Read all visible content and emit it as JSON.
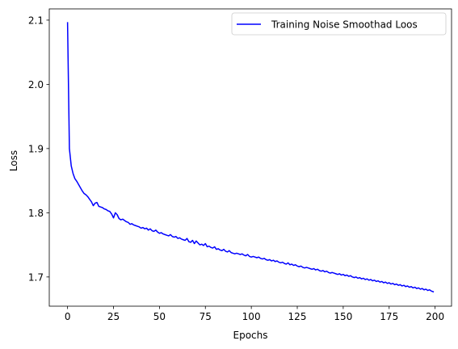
{
  "chart_data": {
    "type": "line",
    "title": "",
    "xlabel": "Epochs",
    "ylabel": "Loss",
    "xlim": [
      -9.95,
      208.95
    ],
    "ylim": [
      1.6545,
      2.1175
    ],
    "xticks": [
      0,
      25,
      50,
      75,
      100,
      125,
      150,
      175,
      200
    ],
    "xtick_labels": [
      "0",
      "25",
      "50",
      "75",
      "100",
      "125",
      "150",
      "175",
      "200"
    ],
    "yticks": [
      1.7,
      1.8,
      1.9,
      2.0,
      2.1
    ],
    "ytick_labels": [
      "1.7",
      "1.8",
      "1.9",
      "2.0",
      "2.1"
    ],
    "grid": false,
    "legend_position": "top-right",
    "series": [
      {
        "name": "Training Noise Smoothad Loos",
        "color": "#0000ff",
        "x": [
          0,
          1,
          2,
          3,
          4,
          5,
          6,
          7,
          8,
          9,
          10,
          11,
          12,
          13,
          14,
          15,
          16,
          17,
          18,
          19,
          20,
          21,
          22,
          23,
          24,
          25,
          26,
          27,
          28,
          29,
          30,
          31,
          32,
          33,
          34,
          35,
          36,
          37,
          38,
          39,
          40,
          41,
          42,
          43,
          44,
          45,
          46,
          47,
          48,
          49,
          50,
          51,
          52,
          53,
          54,
          55,
          56,
          57,
          58,
          59,
          60,
          61,
          62,
          63,
          64,
          65,
          66,
          67,
          68,
          69,
          70,
          71,
          72,
          73,
          74,
          75,
          76,
          77,
          78,
          79,
          80,
          81,
          82,
          83,
          84,
          85,
          86,
          87,
          88,
          89,
          90,
          91,
          92,
          93,
          94,
          95,
          96,
          97,
          98,
          99,
          100,
          101,
          102,
          103,
          104,
          105,
          106,
          107,
          108,
          109,
          110,
          111,
          112,
          113,
          114,
          115,
          116,
          117,
          118,
          119,
          120,
          121,
          122,
          123,
          124,
          125,
          126,
          127,
          128,
          129,
          130,
          131,
          132,
          133,
          134,
          135,
          136,
          137,
          138,
          139,
          140,
          141,
          142,
          143,
          144,
          145,
          146,
          147,
          148,
          149,
          150,
          151,
          152,
          153,
          154,
          155,
          156,
          157,
          158,
          159,
          160,
          161,
          162,
          163,
          164,
          165,
          166,
          167,
          168,
          169,
          170,
          171,
          172,
          173,
          174,
          175,
          176,
          177,
          178,
          179,
          180,
          181,
          182,
          183,
          184,
          185,
          186,
          187,
          188,
          189,
          190,
          191,
          192,
          193,
          194,
          195,
          196,
          197,
          198,
          199
        ],
        "y": [
          2.096,
          1.9,
          1.873,
          1.861,
          1.853,
          1.849,
          1.844,
          1.839,
          1.834,
          1.83,
          1.828,
          1.825,
          1.821,
          1.817,
          1.811,
          1.815,
          1.816,
          1.81,
          1.809,
          1.808,
          1.806,
          1.805,
          1.803,
          1.802,
          1.798,
          1.792,
          1.8,
          1.797,
          1.791,
          1.789,
          1.79,
          1.788,
          1.786,
          1.785,
          1.782,
          1.783,
          1.781,
          1.78,
          1.779,
          1.778,
          1.776,
          1.777,
          1.775,
          1.776,
          1.773,
          1.775,
          1.772,
          1.771,
          1.773,
          1.77,
          1.768,
          1.769,
          1.767,
          1.766,
          1.765,
          1.764,
          1.766,
          1.763,
          1.762,
          1.763,
          1.76,
          1.761,
          1.759,
          1.758,
          1.757,
          1.76,
          1.755,
          1.754,
          1.757,
          1.752,
          1.756,
          1.753,
          1.75,
          1.751,
          1.749,
          1.752,
          1.747,
          1.748,
          1.746,
          1.745,
          1.747,
          1.743,
          1.744,
          1.742,
          1.741,
          1.743,
          1.74,
          1.739,
          1.741,
          1.738,
          1.737,
          1.736,
          1.737,
          1.736,
          1.735,
          1.736,
          1.734,
          1.733,
          1.735,
          1.732,
          1.731,
          1.732,
          1.731,
          1.73,
          1.731,
          1.729,
          1.728,
          1.729,
          1.727,
          1.726,
          1.727,
          1.725,
          1.726,
          1.724,
          1.725,
          1.723,
          1.722,
          1.723,
          1.721,
          1.72,
          1.722,
          1.719,
          1.72,
          1.718,
          1.719,
          1.717,
          1.716,
          1.717,
          1.715,
          1.714,
          1.715,
          1.714,
          1.713,
          1.712,
          1.713,
          1.711,
          1.712,
          1.71,
          1.709,
          1.71,
          1.708,
          1.709,
          1.707,
          1.706,
          1.707,
          1.706,
          1.705,
          1.704,
          1.705,
          1.703,
          1.704,
          1.702,
          1.703,
          1.701,
          1.702,
          1.7,
          1.699,
          1.7,
          1.698,
          1.699,
          1.697,
          1.698,
          1.696,
          1.697,
          1.695,
          1.696,
          1.694,
          1.695,
          1.693,
          1.694,
          1.692,
          1.693,
          1.691,
          1.692,
          1.69,
          1.691,
          1.689,
          1.69,
          1.688,
          1.689,
          1.687,
          1.688,
          1.686,
          1.687,
          1.685,
          1.686,
          1.684,
          1.685,
          1.683,
          1.684,
          1.682,
          1.683,
          1.681,
          1.682,
          1.68,
          1.681,
          1.679,
          1.68,
          1.678,
          1.677
        ]
      }
    ]
  }
}
